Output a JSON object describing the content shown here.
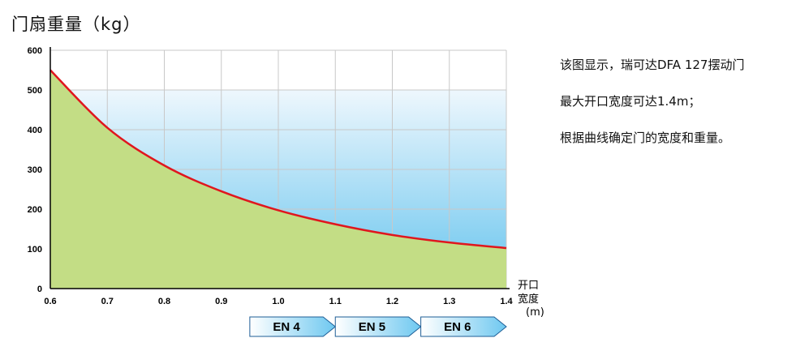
{
  "title": "门扇重量（kg）",
  "description": [
    "该图显示，瑞可达DFA 127摆动门",
    "最大开口宽度可达1.4m；",
    "根据曲线确定门的宽度和重量。"
  ],
  "chart_data": {
    "type": "area",
    "title": "门扇重量（kg）",
    "x_axis_label_line1": "开口",
    "x_axis_label_line2": "宽度",
    "x_axis_unit": "(m)",
    "x_ticks": [
      "0.6",
      "0.7",
      "0.8",
      "0.9",
      "1.0",
      "1.1",
      "1.2",
      "1.3",
      "1.4"
    ],
    "y_ticks": [
      "0",
      "100",
      "200",
      "300",
      "400",
      "500",
      "600"
    ],
    "xlim": [
      0.6,
      1.4
    ],
    "ylim": [
      0,
      600
    ],
    "series": [
      {
        "x": [
          0.6,
          0.7,
          0.8,
          0.9,
          1.0,
          1.1,
          1.2,
          1.3,
          1.4
        ],
        "values": [
          550,
          405,
          310,
          245,
          197,
          162,
          135,
          116,
          102
        ]
      }
    ],
    "line_color": "#e0161e",
    "fill_below_color": "#c3dd85",
    "gradient_top_color": "#eef7fd",
    "gradient_bottom_color": "#66c4ee",
    "grid": true,
    "classes": [
      {
        "label": "EN 4",
        "range": [
          0.95,
          1.1
        ]
      },
      {
        "label": "EN 5",
        "range": [
          1.1,
          1.25
        ]
      },
      {
        "label": "EN 6",
        "range": [
          1.25,
          1.4
        ]
      }
    ]
  }
}
